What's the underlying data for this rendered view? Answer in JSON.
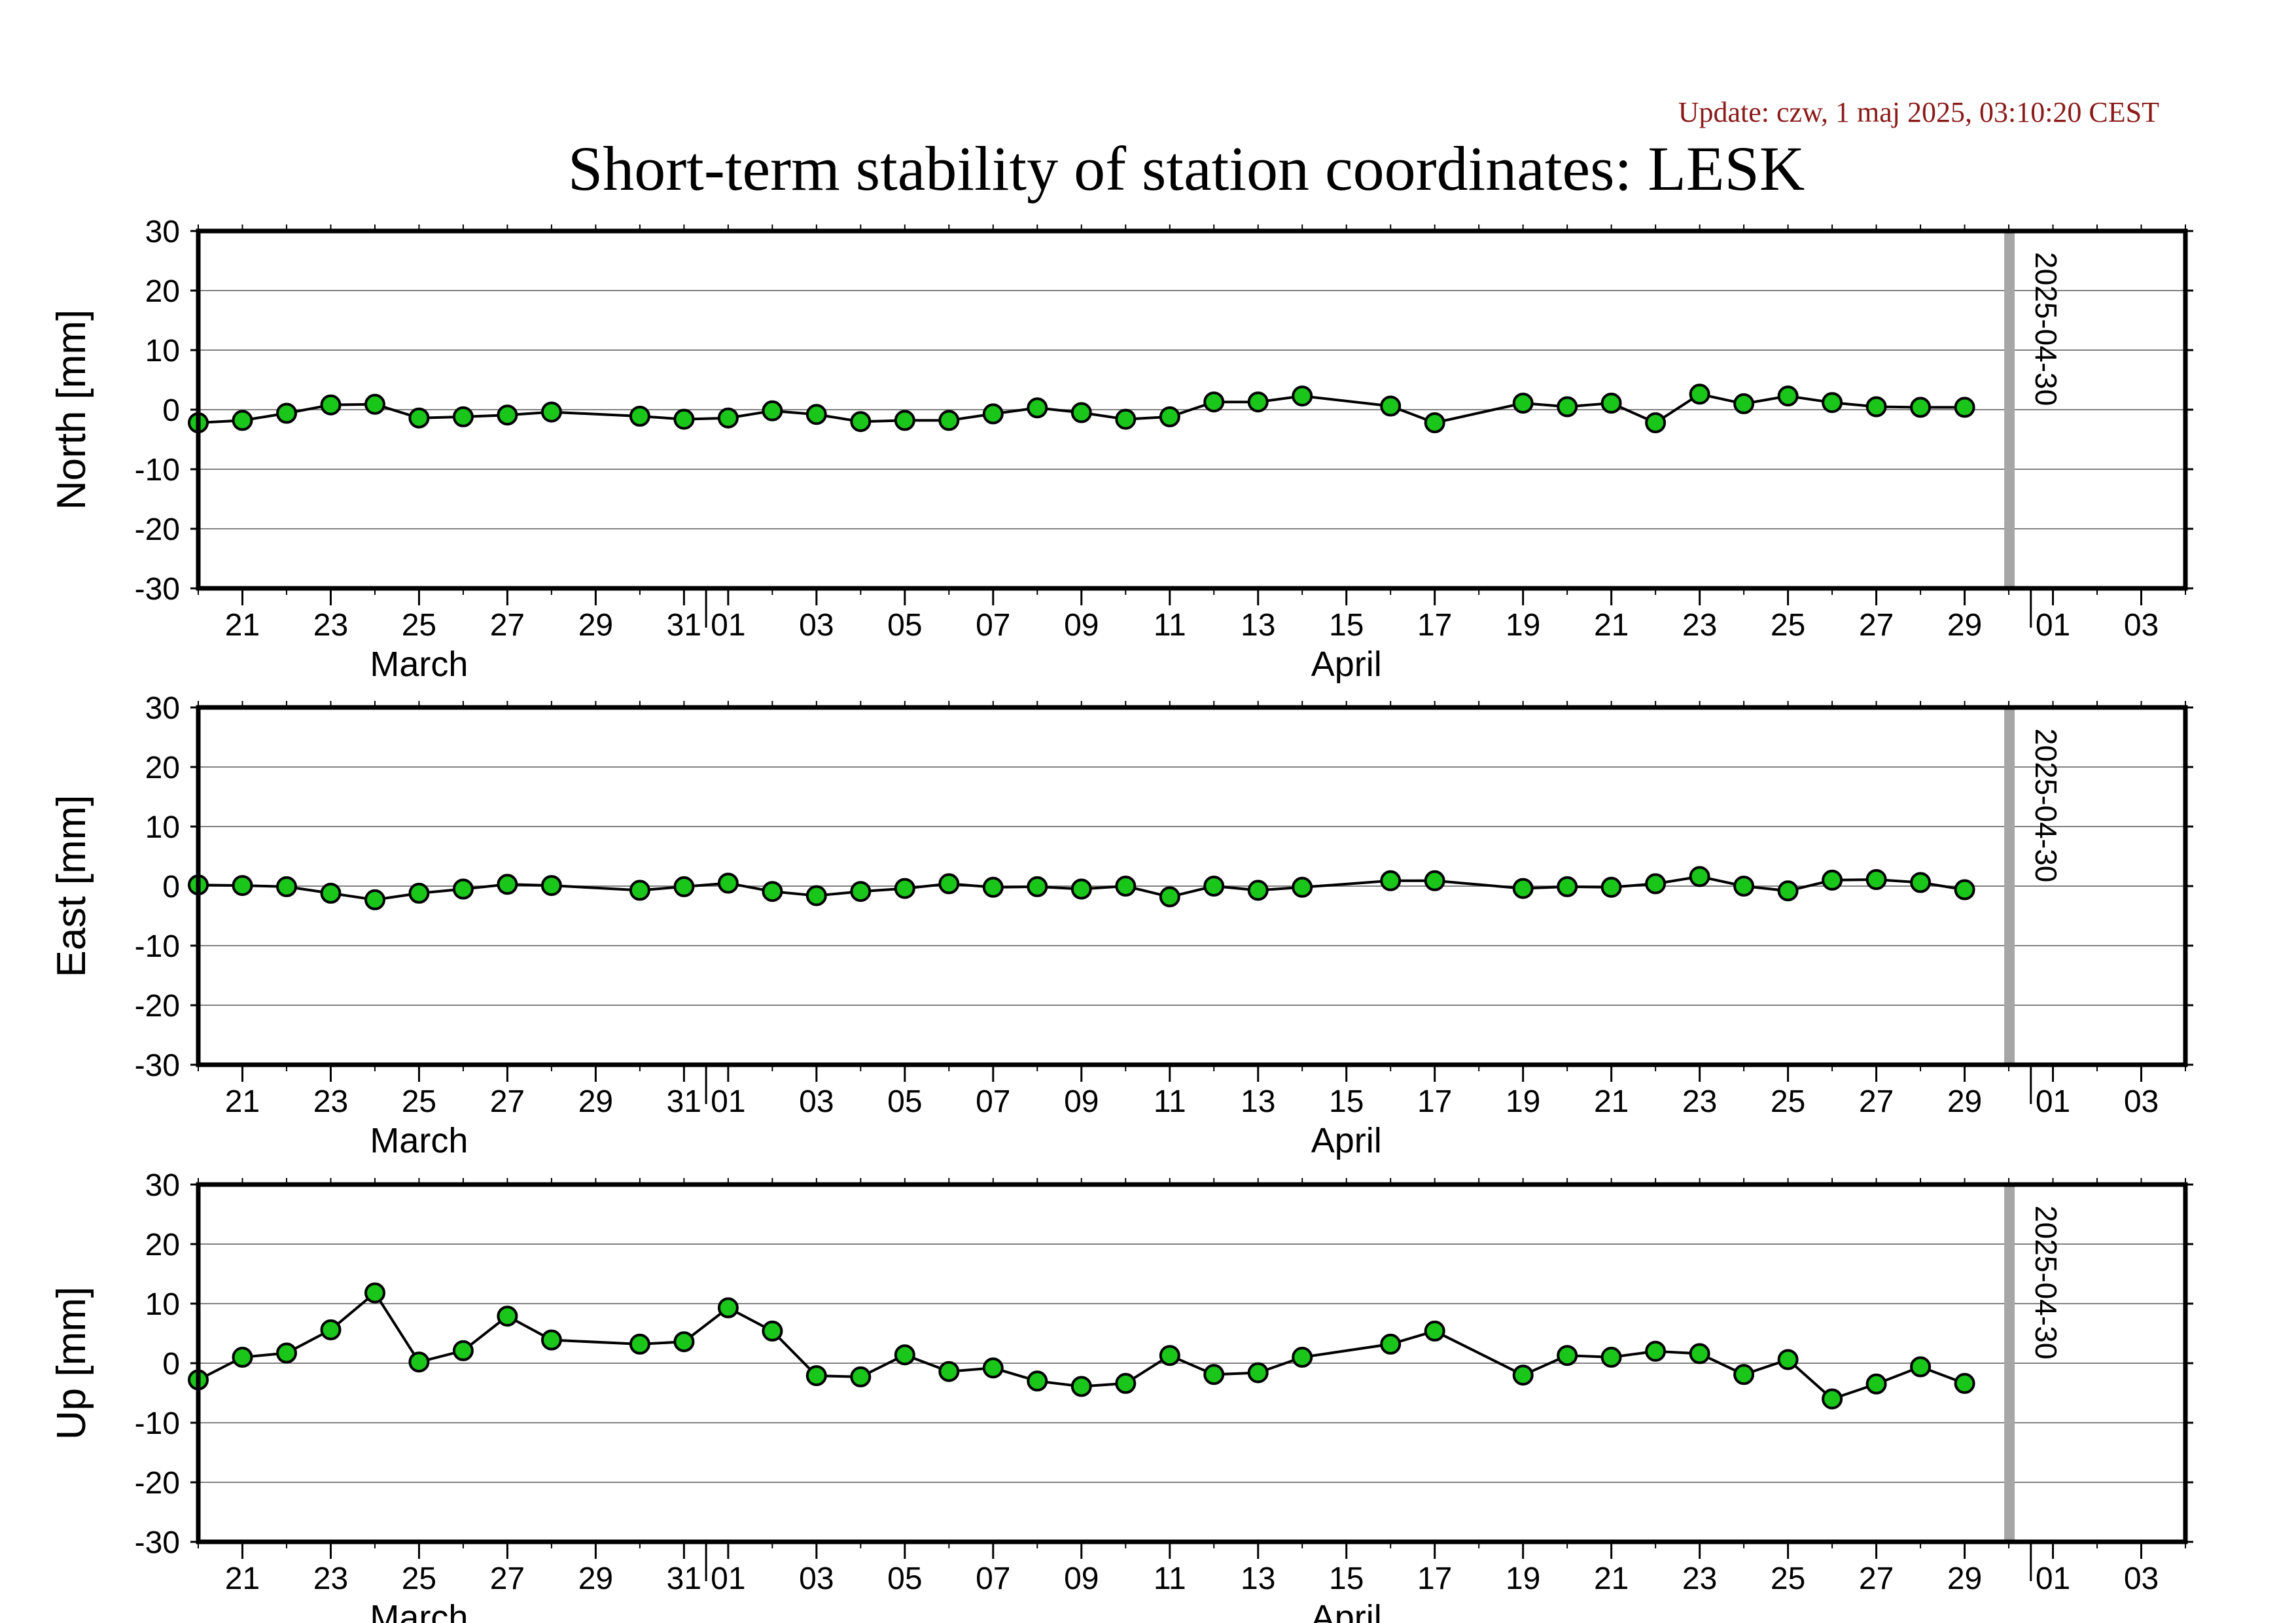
{
  "header": {
    "update": "Update: czw, 1 maj 2025, 03:10:20 CEST",
    "title": "Short-term stability of station coordinates: LESK"
  },
  "colors": {
    "marker_fill": "#19c619",
    "marker_stroke": "#000000",
    "line": "#000000",
    "grid": "#808080",
    "current_day_line": "#a6a6a6",
    "update_text": "#8b1a1a"
  },
  "chart_data": [
    {
      "type": "line",
      "ylabel": "North [mm]",
      "ylim": [
        -30,
        30
      ],
      "yticks": [
        30,
        20,
        10,
        0,
        -10,
        -20,
        -30
      ],
      "xlim": [
        "2025-03-20",
        "2025-05-04"
      ],
      "x_tick_labels": [
        "21",
        "23",
        "25",
        "27",
        "29",
        "31",
        "01",
        "03",
        "05",
        "07",
        "09",
        "11",
        "13",
        "15",
        "17",
        "19",
        "21",
        "23",
        "25",
        "27",
        "29",
        "01",
        "03"
      ],
      "month_labels": [
        "March",
        "April"
      ],
      "grid": true,
      "current_day_marker": "2025-04-30",
      "series": [
        {
          "x": [
            "2025-03-20",
            "2025-03-21",
            "2025-03-22",
            "2025-03-23",
            "2025-03-24",
            "2025-03-25",
            "2025-03-26",
            "2025-03-27",
            "2025-03-28",
            "2025-03-30",
            "2025-03-31",
            "2025-04-01",
            "2025-04-02",
            "2025-04-03",
            "2025-04-04",
            "2025-04-05",
            "2025-04-06",
            "2025-04-07",
            "2025-04-08",
            "2025-04-09",
            "2025-04-10",
            "2025-04-11",
            "2025-04-12",
            "2025-04-13",
            "2025-04-14",
            "2025-04-16",
            "2025-04-17",
            "2025-04-19",
            "2025-04-20",
            "2025-04-21",
            "2025-04-22",
            "2025-04-23",
            "2025-04-24",
            "2025-04-25",
            "2025-04-26",
            "2025-04-27",
            "2025-04-28",
            "2025-04-29"
          ],
          "y": [
            -2.2,
            -1.8,
            -0.6,
            0.8,
            0.9,
            -1.4,
            -1.2,
            -0.9,
            -0.4,
            -1.1,
            -1.6,
            -1.4,
            -0.2,
            -0.8,
            -2.0,
            -1.8,
            -1.8,
            -0.7,
            0.3,
            -0.5,
            -1.6,
            -1.2,
            1.3,
            1.3,
            2.3,
            0.6,
            -2.2,
            1.1,
            0.5,
            1.1,
            -2.2,
            2.6,
            1.0,
            2.3,
            1.2,
            0.5,
            0.4,
            0.4
          ]
        }
      ]
    },
    {
      "type": "line",
      "ylabel": "East [mm]",
      "ylim": [
        -30,
        30
      ],
      "yticks": [
        30,
        20,
        10,
        0,
        -10,
        -20,
        -30
      ],
      "xlim": [
        "2025-03-20",
        "2025-05-04"
      ],
      "x_tick_labels": [
        "21",
        "23",
        "25",
        "27",
        "29",
        "31",
        "01",
        "03",
        "05",
        "07",
        "09",
        "11",
        "13",
        "15",
        "17",
        "19",
        "21",
        "23",
        "25",
        "27",
        "29",
        "01",
        "03"
      ],
      "month_labels": [
        "March",
        "April"
      ],
      "grid": true,
      "current_day_marker": "2025-04-30",
      "series": [
        {
          "x": [
            "2025-03-20",
            "2025-03-21",
            "2025-03-22",
            "2025-03-23",
            "2025-03-24",
            "2025-03-25",
            "2025-03-26",
            "2025-03-27",
            "2025-03-28",
            "2025-03-30",
            "2025-03-31",
            "2025-04-01",
            "2025-04-02",
            "2025-04-03",
            "2025-04-04",
            "2025-04-05",
            "2025-04-06",
            "2025-04-07",
            "2025-04-08",
            "2025-04-09",
            "2025-04-10",
            "2025-04-11",
            "2025-04-12",
            "2025-04-13",
            "2025-04-14",
            "2025-04-16",
            "2025-04-17",
            "2025-04-19",
            "2025-04-20",
            "2025-04-21",
            "2025-04-22",
            "2025-04-23",
            "2025-04-24",
            "2025-04-25",
            "2025-04-26",
            "2025-04-27",
            "2025-04-28",
            "2025-04-29"
          ],
          "y": [
            0.2,
            0.1,
            -0.1,
            -1.2,
            -2.3,
            -1.2,
            -0.5,
            0.3,
            0.1,
            -0.7,
            -0.1,
            0.5,
            -0.9,
            -1.6,
            -0.9,
            -0.4,
            0.4,
            -0.2,
            -0.1,
            -0.5,
            0.0,
            -1.8,
            0.0,
            -0.7,
            -0.2,
            0.9,
            0.9,
            -0.4,
            -0.1,
            -0.2,
            0.4,
            1.6,
            0.0,
            -0.8,
            1.0,
            1.1,
            0.6,
            -0.6
          ]
        }
      ]
    },
    {
      "type": "line",
      "ylabel": "Up [mm]",
      "ylim": [
        -30,
        30
      ],
      "yticks": [
        30,
        20,
        10,
        0,
        -10,
        -20,
        -30
      ],
      "xlim": [
        "2025-03-20",
        "2025-05-04"
      ],
      "x_tick_labels": [
        "21",
        "23",
        "25",
        "27",
        "29",
        "31",
        "01",
        "03",
        "05",
        "07",
        "09",
        "11",
        "13",
        "15",
        "17",
        "19",
        "21",
        "23",
        "25",
        "27",
        "29",
        "01",
        "03"
      ],
      "month_labels": [
        "March",
        "April"
      ],
      "grid": true,
      "current_day_marker": "2025-04-30",
      "series": [
        {
          "x": [
            "2025-03-20",
            "2025-03-21",
            "2025-03-22",
            "2025-03-23",
            "2025-03-24",
            "2025-03-25",
            "2025-03-26",
            "2025-03-27",
            "2025-03-28",
            "2025-03-30",
            "2025-03-31",
            "2025-04-01",
            "2025-04-02",
            "2025-04-03",
            "2025-04-04",
            "2025-04-05",
            "2025-04-06",
            "2025-04-07",
            "2025-04-08",
            "2025-04-09",
            "2025-04-10",
            "2025-04-11",
            "2025-04-12",
            "2025-04-13",
            "2025-04-14",
            "2025-04-16",
            "2025-04-17",
            "2025-04-19",
            "2025-04-20",
            "2025-04-21",
            "2025-04-22",
            "2025-04-23",
            "2025-04-24",
            "2025-04-25",
            "2025-04-26",
            "2025-04-27",
            "2025-04-28",
            "2025-04-29"
          ],
          "y": [
            -2.8,
            1.0,
            1.7,
            5.6,
            11.8,
            0.2,
            2.1,
            7.9,
            3.9,
            3.2,
            3.6,
            9.3,
            5.4,
            -2.1,
            -2.3,
            1.4,
            -1.4,
            -0.8,
            -3.0,
            -3.9,
            -3.4,
            1.3,
            -1.9,
            -1.6,
            1.0,
            3.2,
            5.4,
            -2.0,
            1.3,
            1.0,
            2.0,
            1.6,
            -1.9,
            0.6,
            -6.0,
            -3.5,
            -0.6,
            -3.4
          ]
        }
      ]
    }
  ]
}
